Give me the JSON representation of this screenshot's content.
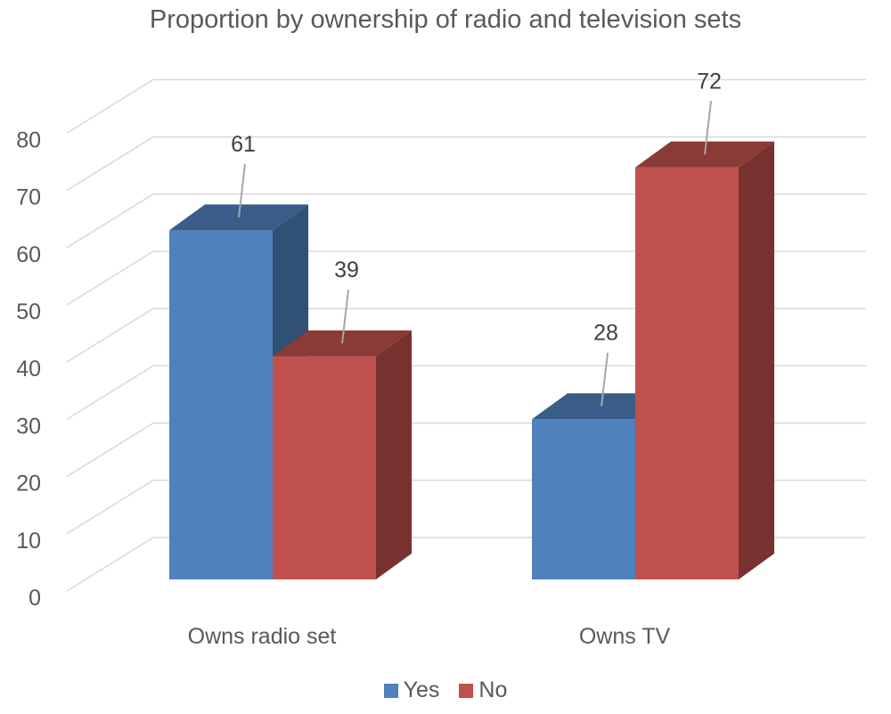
{
  "chart_data": {
    "type": "bar",
    "title": "Proportion by ownership of radio and television sets",
    "xlabel": "",
    "ylabel": "",
    "categories": [
      "Owns radio set",
      "Owns TV"
    ],
    "series": [
      {
        "name": "Yes",
        "values": [
          61,
          28
        ],
        "color": "#4f81bd"
      },
      {
        "name": "No",
        "values": [
          39,
          72
        ],
        "color": "#c0504d"
      }
    ],
    "ylim": [
      0,
      90
    ],
    "yticks": [
      0,
      10,
      20,
      30,
      40,
      50,
      60,
      70,
      80
    ],
    "grid": true,
    "style": "3d-clustered-column",
    "legend_position": "bottom"
  }
}
